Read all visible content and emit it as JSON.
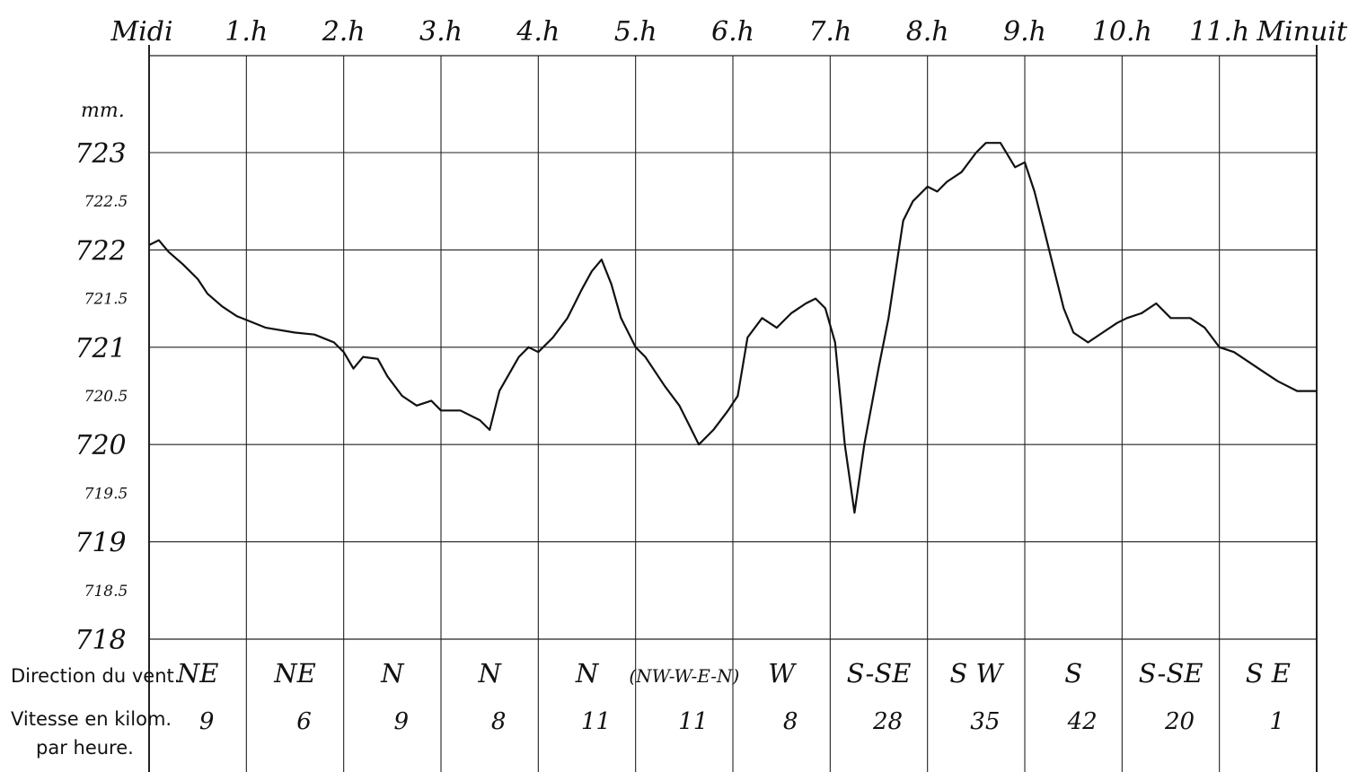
{
  "chart_data": {
    "type": "line",
    "unit_label": "mm.",
    "hour_labels": [
      "Midi",
      "1.h",
      "2.h",
      "3.h",
      "4.h",
      "5.h",
      "6.h",
      "7.h",
      "8.h",
      "9.h",
      "10.h",
      "11.h",
      "Minuit"
    ],
    "y_ticks": [
      {
        "value": 723,
        "label": "723"
      },
      {
        "value": 722.5,
        "label": "722.5"
      },
      {
        "value": 722,
        "label": "722"
      },
      {
        "value": 721.5,
        "label": "721.5"
      },
      {
        "value": 721,
        "label": "721"
      },
      {
        "value": 720.5,
        "label": "720.5"
      },
      {
        "value": 720,
        "label": "720"
      },
      {
        "value": 719.5,
        "label": "719.5"
      },
      {
        "value": 719,
        "label": "719"
      },
      {
        "value": 718.5,
        "label": "718.5"
      },
      {
        "value": 718,
        "label": "718"
      }
    ],
    "ylim": [
      718,
      723.6
    ],
    "xlim": [
      0,
      12
    ],
    "series": [
      {
        "x": [
          0,
          0.1,
          0.2,
          0.35,
          0.5,
          0.6,
          0.75,
          0.9,
          1.0,
          1.2,
          1.5,
          1.7,
          1.9,
          2.0,
          2.1,
          2.2,
          2.35,
          2.45,
          2.6,
          2.75,
          2.9,
          3.0,
          3.2,
          3.4,
          3.5,
          3.6,
          3.8,
          3.9,
          4.0,
          4.15,
          4.3,
          4.45,
          4.55,
          4.65,
          4.75,
          4.85,
          5.0,
          5.1,
          5.3,
          5.45,
          5.55,
          5.65,
          5.8,
          5.95,
          6.05,
          6.15,
          6.3,
          6.45,
          6.6,
          6.75,
          6.85,
          6.95,
          7.05,
          7.15,
          7.25,
          7.35,
          7.5,
          7.6,
          7.75,
          7.85,
          8.0,
          8.1,
          8.2,
          8.35,
          8.5,
          8.6,
          8.75,
          8.9,
          9.0,
          9.1,
          9.2,
          9.3,
          9.4,
          9.5,
          9.65,
          9.8,
          9.95,
          10.05,
          10.2,
          10.35,
          10.5,
          10.7,
          10.85,
          11.0,
          11.15,
          11.3,
          11.45,
          11.6,
          11.8,
          12.0
        ],
        "values": [
          722.05,
          722.1,
          721.98,
          721.85,
          721.7,
          721.55,
          721.42,
          721.32,
          721.28,
          721.2,
          721.15,
          721.13,
          721.05,
          720.95,
          720.78,
          720.9,
          720.88,
          720.7,
          720.5,
          720.4,
          720.45,
          720.35,
          720.35,
          720.25,
          720.15,
          720.55,
          720.9,
          721.0,
          720.95,
          721.1,
          721.3,
          721.6,
          721.78,
          721.9,
          721.65,
          721.3,
          721.0,
          720.9,
          720.6,
          720.4,
          720.2,
          720.0,
          720.15,
          720.35,
          720.5,
          721.1,
          721.3,
          721.2,
          721.35,
          721.45,
          721.5,
          721.4,
          721.05,
          720.0,
          719.3,
          720.0,
          720.8,
          721.3,
          722.3,
          722.5,
          722.65,
          722.6,
          722.7,
          722.8,
          723.0,
          723.1,
          723.1,
          722.85,
          722.9,
          722.6,
          722.2,
          721.8,
          721.4,
          721.15,
          721.05,
          721.15,
          721.25,
          721.3,
          721.35,
          721.45,
          721.3,
          721.3,
          721.2,
          721.0,
          720.95,
          720.85,
          720.75,
          720.65,
          720.55,
          720.55
        ]
      }
    ],
    "wind": {
      "direction_label": "Direction du vent.",
      "speed_label_line1": "Vitesse en kilom.",
      "speed_label_line2": "par heure.",
      "directions": [
        "NE",
        "NE",
        "N",
        "N",
        "N",
        "(NW-W-E-N)",
        "W",
        "S-SE",
        "S W",
        "S",
        "S-SE",
        "S E"
      ],
      "speeds": [
        9,
        6,
        9,
        8,
        11,
        11,
        8,
        28,
        35,
        42,
        20,
        1
      ]
    },
    "grid": true
  }
}
